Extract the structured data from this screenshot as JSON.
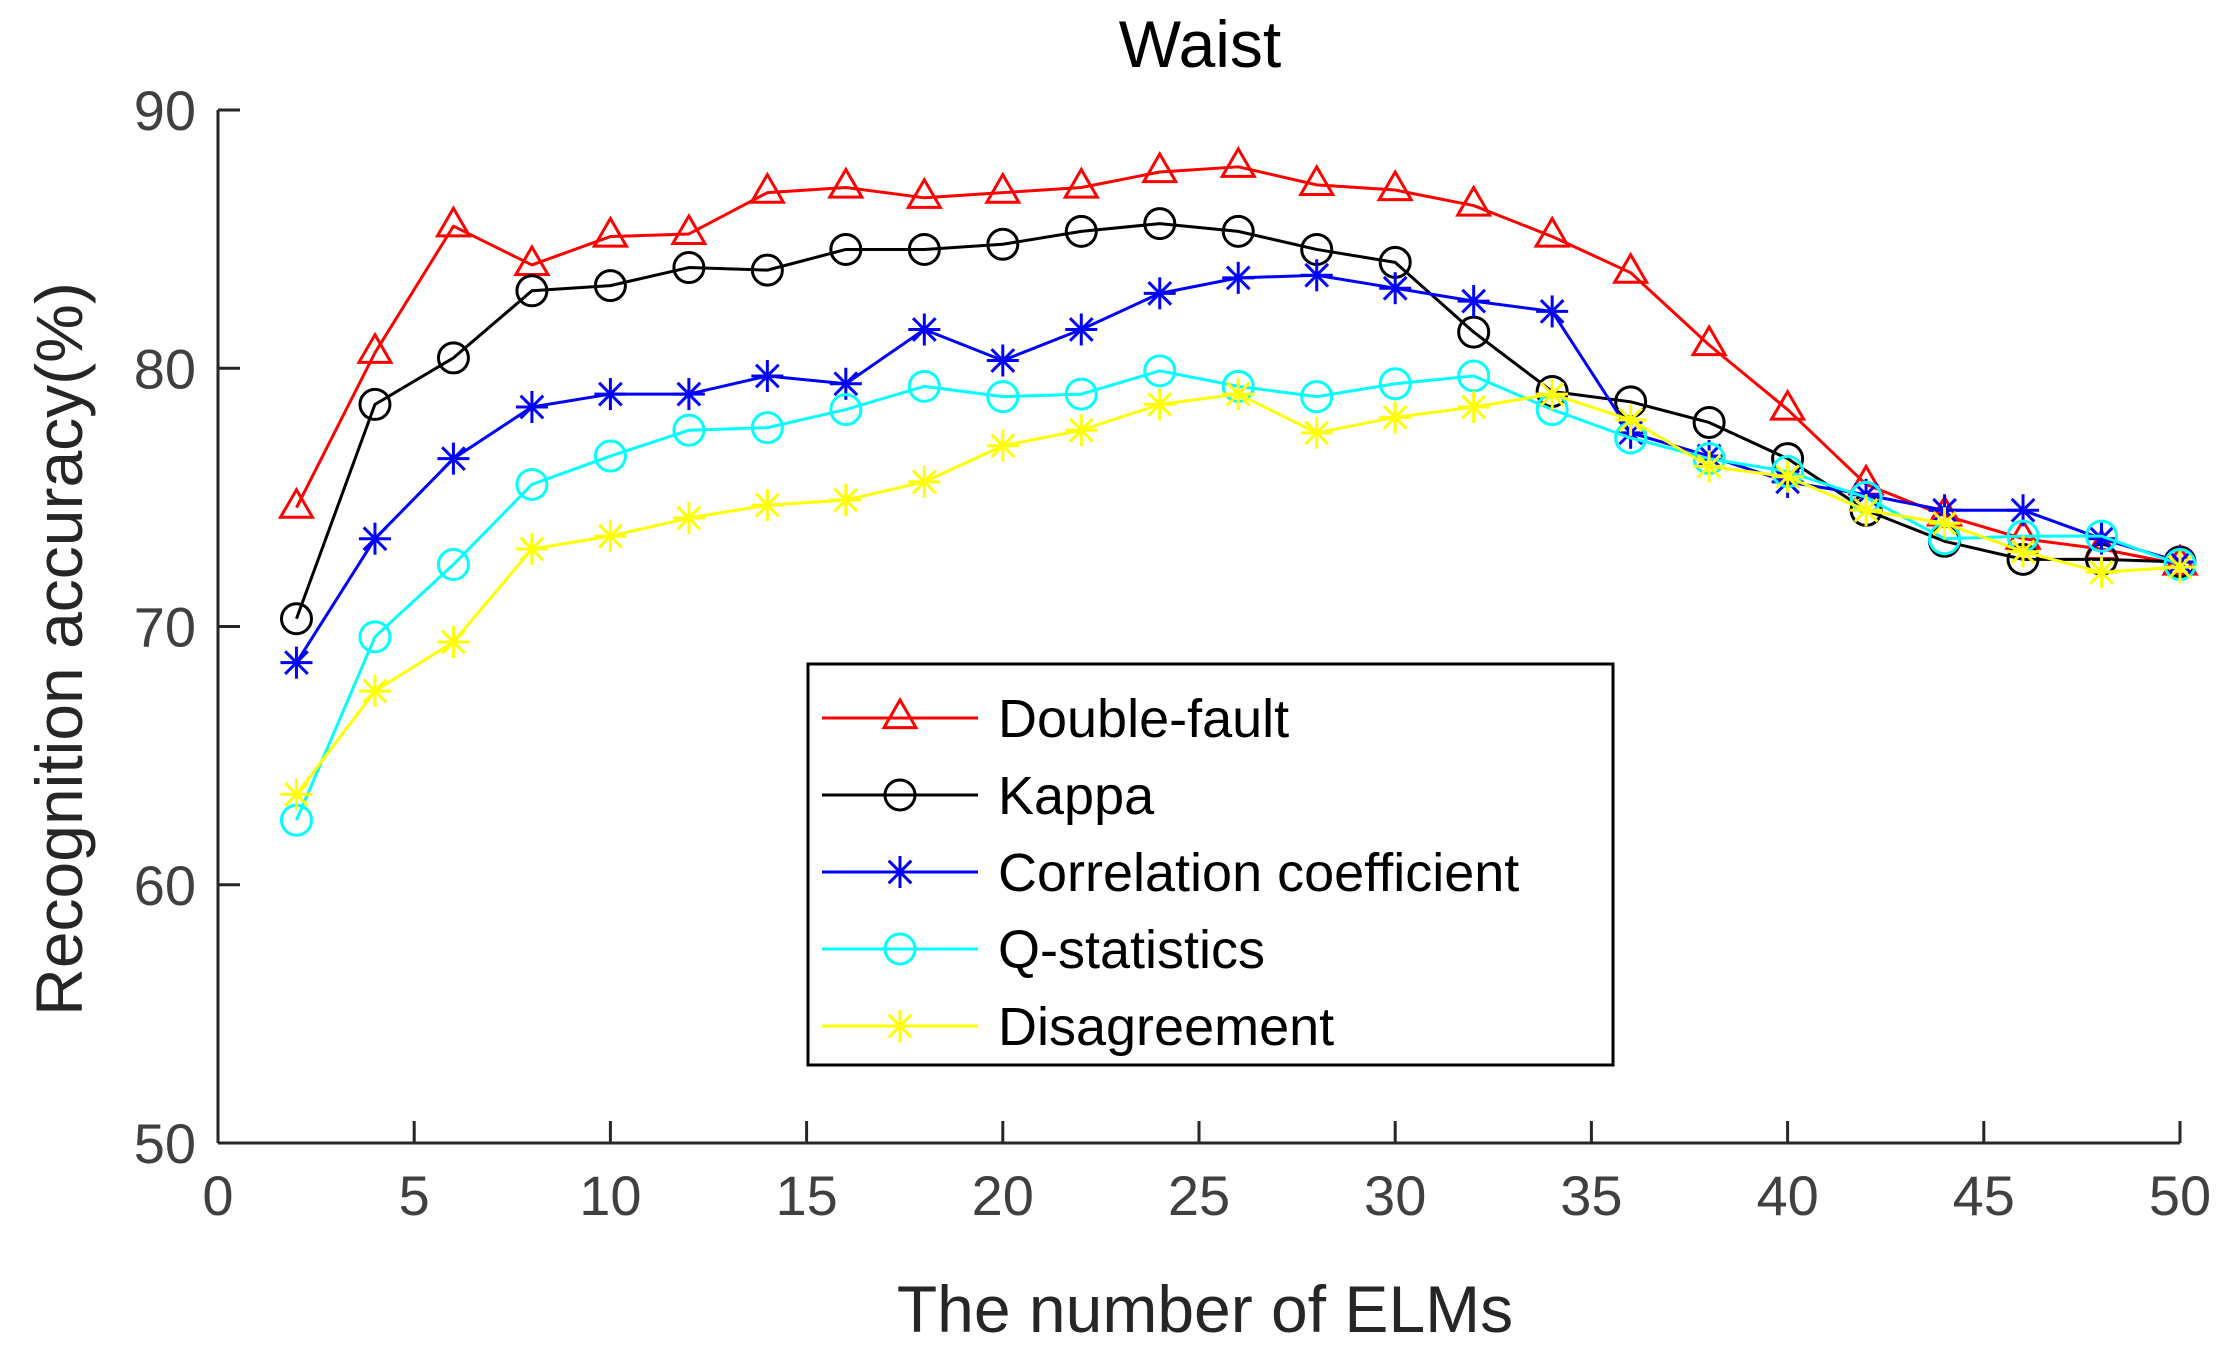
{
  "chart_data": {
    "type": "line",
    "title": "Waist",
    "xlabel": "The number of ELMs",
    "ylabel": "Recognition accuracy(%)",
    "xlim": [
      0,
      50
    ],
    "ylim": [
      50,
      90
    ],
    "xticks": [
      0,
      5,
      10,
      15,
      20,
      25,
      30,
      35,
      40,
      45,
      50
    ],
    "yticks": [
      50,
      60,
      70,
      80,
      90
    ],
    "legend_position": "center",
    "x": [
      2,
      4,
      6,
      8,
      10,
      12,
      14,
      16,
      18,
      20,
      22,
      24,
      26,
      28,
      30,
      32,
      34,
      36,
      38,
      40,
      42,
      44,
      46,
      48,
      50
    ],
    "series": [
      {
        "name": "Double-fault",
        "color": "#ff0000",
        "marker": "triangle",
        "values": [
          74.6,
          80.6,
          85.5,
          84.0,
          85.1,
          85.2,
          86.8,
          87.0,
          86.6,
          86.8,
          87.0,
          87.6,
          87.8,
          87.1,
          86.9,
          86.3,
          85.1,
          83.7,
          80.9,
          78.4,
          75.5,
          74.3,
          73.4,
          73.0,
          72.4
        ]
      },
      {
        "name": "Kappa",
        "color": "#000000",
        "marker": "circle",
        "values": [
          70.3,
          78.6,
          80.4,
          83.0,
          83.2,
          83.9,
          83.8,
          84.6,
          84.6,
          84.8,
          85.3,
          85.6,
          85.3,
          84.6,
          84.1,
          81.4,
          79.1,
          78.7,
          77.9,
          76.5,
          74.5,
          73.3,
          72.6,
          72.6,
          72.5
        ]
      },
      {
        "name": "Correlation coefficient",
        "color": "#0000ff",
        "marker": "asterisk",
        "values": [
          68.6,
          73.4,
          76.5,
          78.5,
          79.0,
          79.0,
          79.7,
          79.4,
          81.5,
          80.3,
          81.5,
          82.9,
          83.5,
          83.6,
          83.1,
          82.6,
          82.2,
          77.5,
          76.6,
          75.6,
          75.1,
          74.5,
          74.5,
          73.4,
          72.5
        ]
      },
      {
        "name": "Q-statistics",
        "color": "#00ffff",
        "marker": "circle",
        "values": [
          62.5,
          69.6,
          72.4,
          75.5,
          76.6,
          77.6,
          77.7,
          78.4,
          79.3,
          78.9,
          79.0,
          79.9,
          79.3,
          78.9,
          79.4,
          79.7,
          78.4,
          77.3,
          76.5,
          76.0,
          75.0,
          73.4,
          73.5,
          73.5,
          72.4
        ]
      },
      {
        "name": "Disagreement",
        "color": "#ffff00",
        "marker": "asterisk",
        "values": [
          63.5,
          67.5,
          69.4,
          73.0,
          73.5,
          74.2,
          74.7,
          74.9,
          75.6,
          77.0,
          77.6,
          78.6,
          79.0,
          77.5,
          78.1,
          78.5,
          79.0,
          78.0,
          76.2,
          75.8,
          74.5,
          74.0,
          72.9,
          72.1,
          72.3
        ]
      }
    ]
  }
}
